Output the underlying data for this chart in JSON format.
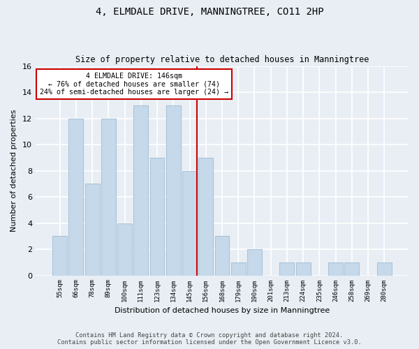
{
  "title": "4, ELMDALE DRIVE, MANNINGTREE, CO11 2HP",
  "subtitle": "Size of property relative to detached houses in Manningtree",
  "xlabel": "Distribution of detached houses by size in Manningtree",
  "ylabel": "Number of detached properties",
  "categories": [
    "55sqm",
    "66sqm",
    "78sqm",
    "89sqm",
    "100sqm",
    "111sqm",
    "123sqm",
    "134sqm",
    "145sqm",
    "156sqm",
    "168sqm",
    "179sqm",
    "190sqm",
    "201sqm",
    "213sqm",
    "224sqm",
    "235sqm",
    "246sqm",
    "258sqm",
    "269sqm",
    "280sqm"
  ],
  "values": [
    3,
    12,
    7,
    12,
    4,
    13,
    9,
    13,
    8,
    9,
    3,
    1,
    2,
    0,
    1,
    1,
    0,
    1,
    1,
    0,
    1
  ],
  "bar_color": "#c5d9ea",
  "bar_edgecolor": "#aac4d8",
  "highlight_index": 8,
  "highlight_color": "#cc0000",
  "ylim": [
    0,
    16
  ],
  "yticks": [
    0,
    2,
    4,
    6,
    8,
    10,
    12,
    14,
    16
  ],
  "annotation_title": "4 ELMDALE DRIVE: 146sqm",
  "annotation_line1": "← 76% of detached houses are smaller (74)",
  "annotation_line2": "24% of semi-detached houses are larger (24) →",
  "annotation_box_color": "#ffffff",
  "annotation_box_edgecolor": "#cc0000",
  "footer1": "Contains HM Land Registry data © Crown copyright and database right 2024.",
  "footer2": "Contains public sector information licensed under the Open Government Licence v3.0.",
  "background_color": "#e8eef4",
  "grid_color": "#ffffff",
  "fig_width": 6.0,
  "fig_height": 5.0,
  "dpi": 100
}
